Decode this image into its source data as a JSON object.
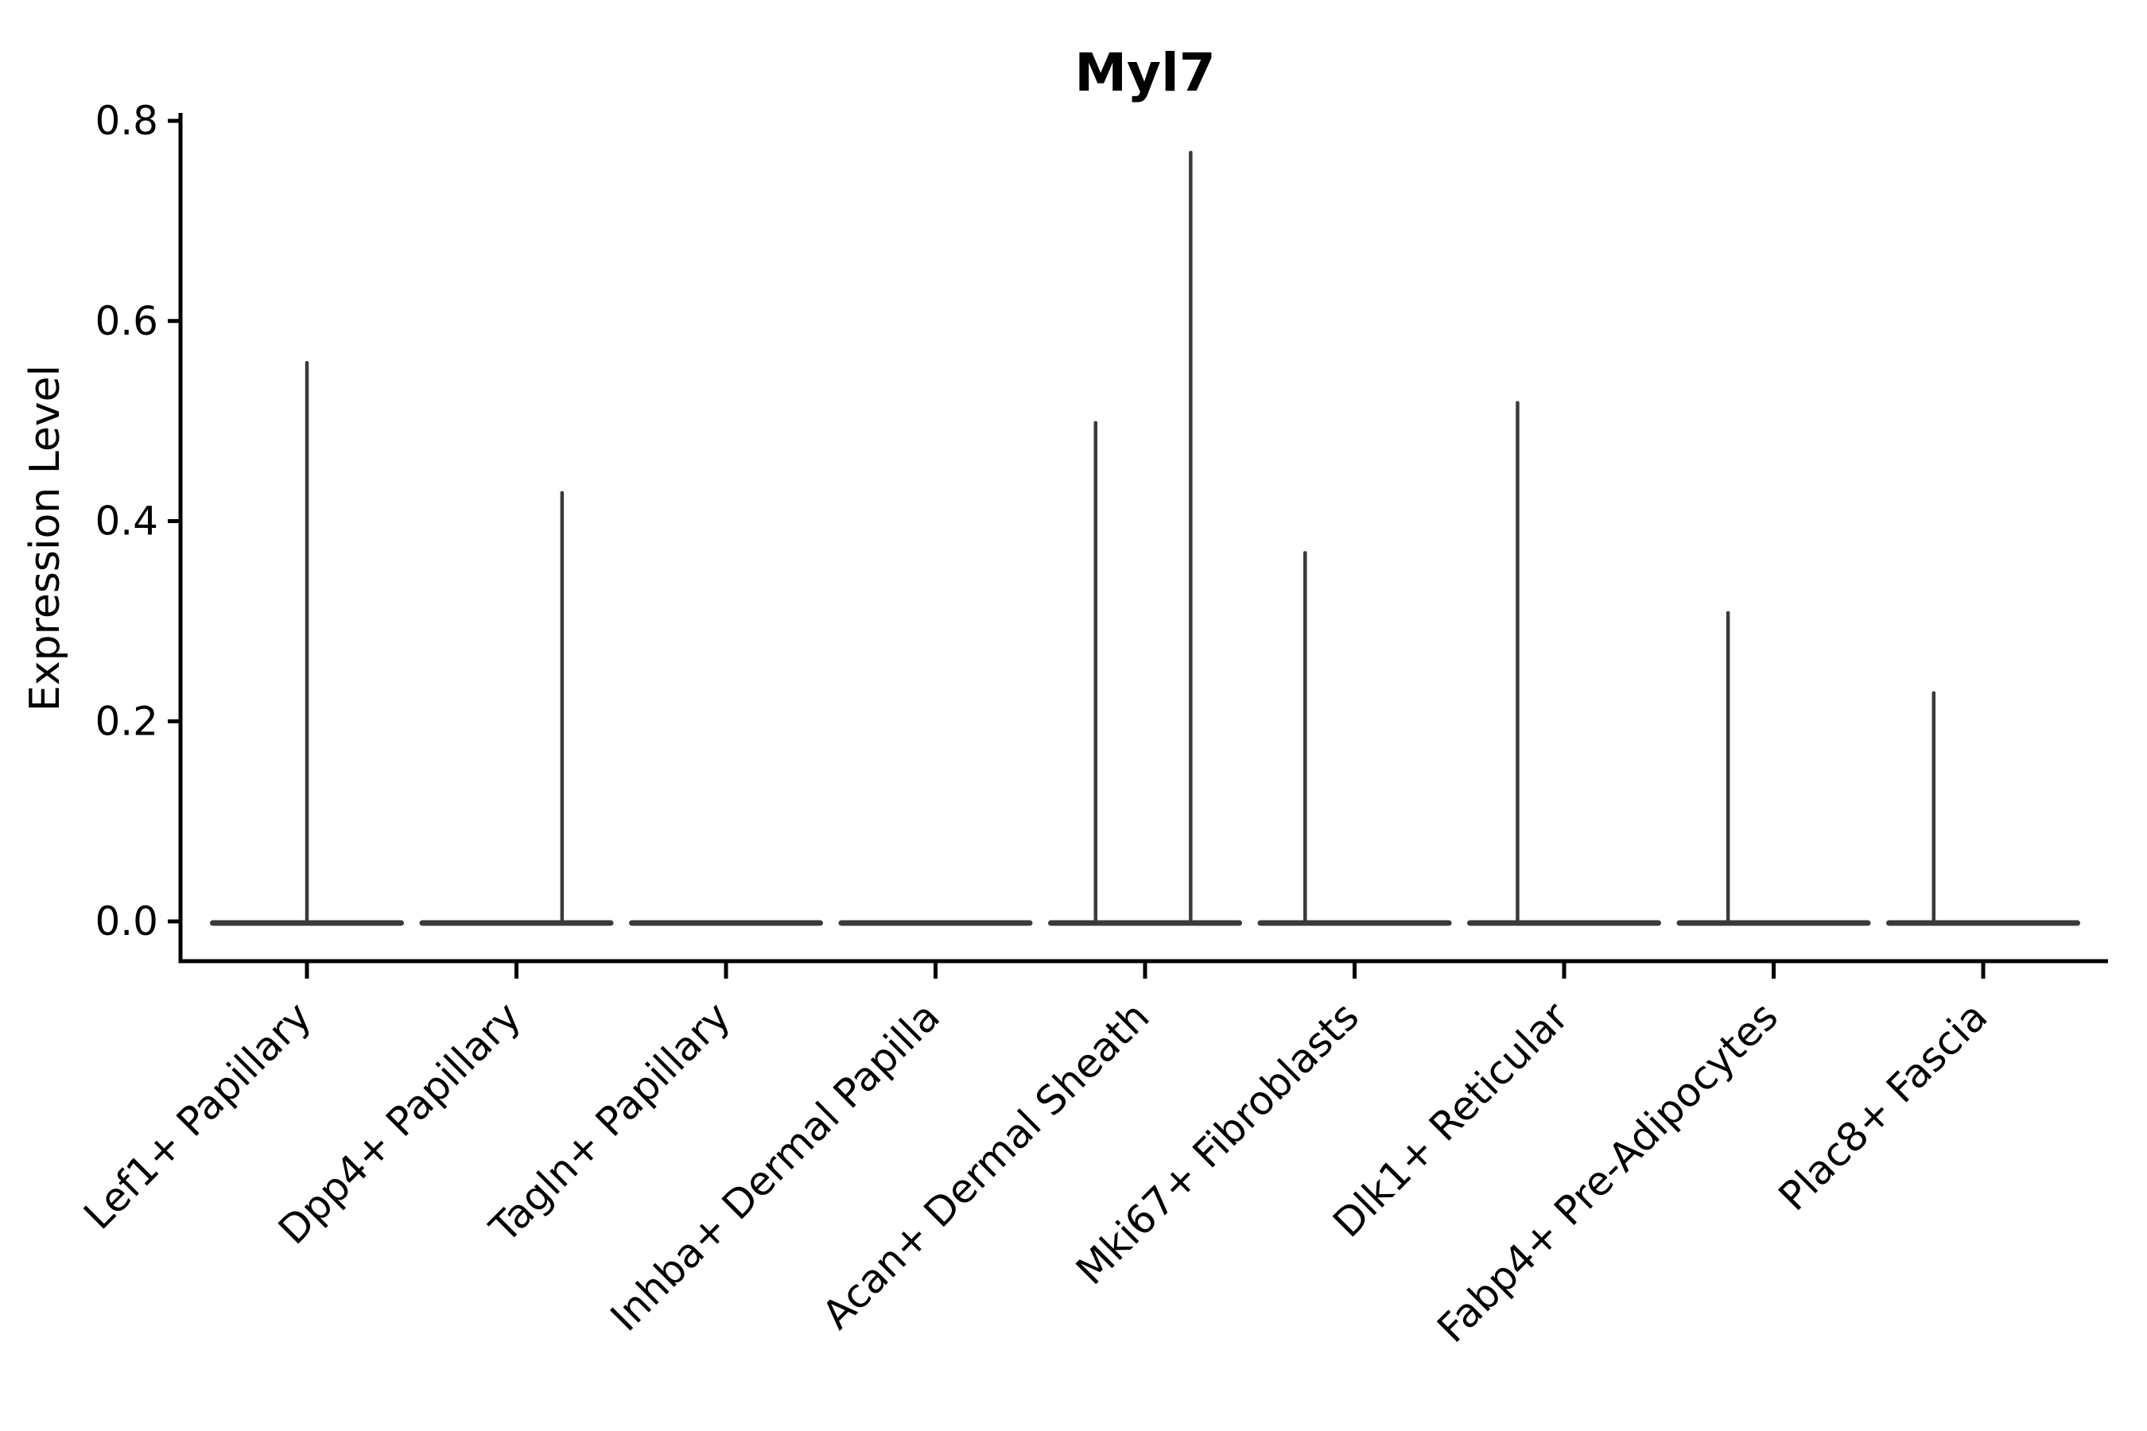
{
  "chart_data": {
    "type": "violin",
    "title": "Myl7",
    "ylabel": "Expression Level",
    "xlabel": "",
    "ylim": [
      0.0,
      0.8
    ],
    "yticks": [
      0.0,
      0.2,
      0.4,
      0.6,
      0.8
    ],
    "grid": false,
    "legend": "none",
    "background": "#ffffff",
    "colors": {
      "violin": "#3a3a3a",
      "axis": "#000000",
      "text": "#000000"
    },
    "categories": [
      "Lef1+ Papillary",
      "Dpp4+ Papillary",
      "Tagln+ Papillary",
      "Inhba+ Dermal Papilla",
      "Acan+ Dermal Sheath",
      "Mki67+ Fibroblasts",
      "Dlk1+ Reticular",
      "Fabp4+ Pre-Adipocytes",
      "Plac8+ Fascia"
    ],
    "series": [
      {
        "category": "Lef1+ Papillary",
        "baseline": 0.0,
        "max": 0.56,
        "spikes": [
          {
            "offset_frac": 0.0,
            "value": 0.56
          }
        ]
      },
      {
        "category": "Dpp4+ Papillary",
        "baseline": 0.0,
        "max": 0.43,
        "spikes": [
          {
            "offset_frac": 0.47,
            "value": 0.43
          }
        ]
      },
      {
        "category": "Tagln+ Papillary",
        "baseline": 0.0,
        "max": 0.0,
        "spikes": []
      },
      {
        "category": "Inhba+ Dermal Papilla",
        "baseline": 0.0,
        "max": 0.0,
        "spikes": []
      },
      {
        "category": "Acan+ Dermal Sheath",
        "baseline": 0.0,
        "max": 0.77,
        "spikes": [
          {
            "offset_frac": -0.51,
            "value": 0.5
          },
          {
            "offset_frac": 0.47,
            "value": 0.77
          }
        ]
      },
      {
        "category": "Mki67+ Fibroblasts",
        "baseline": 0.0,
        "max": 0.37,
        "spikes": [
          {
            "offset_frac": -0.51,
            "value": 0.37
          }
        ]
      },
      {
        "category": "Dlk1+ Reticular",
        "baseline": 0.0,
        "max": 0.52,
        "spikes": [
          {
            "offset_frac": -0.48,
            "value": 0.52
          }
        ]
      },
      {
        "category": "Fabp4+ Pre-Adipocytes",
        "baseline": 0.0,
        "max": 0.31,
        "spikes": [
          {
            "offset_frac": -0.47,
            "value": 0.31
          }
        ]
      },
      {
        "category": "Plac8+ Fascia",
        "baseline": 0.0,
        "max": 0.23,
        "spikes": [
          {
            "offset_frac": -0.51,
            "value": 0.23
          }
        ]
      }
    ]
  }
}
